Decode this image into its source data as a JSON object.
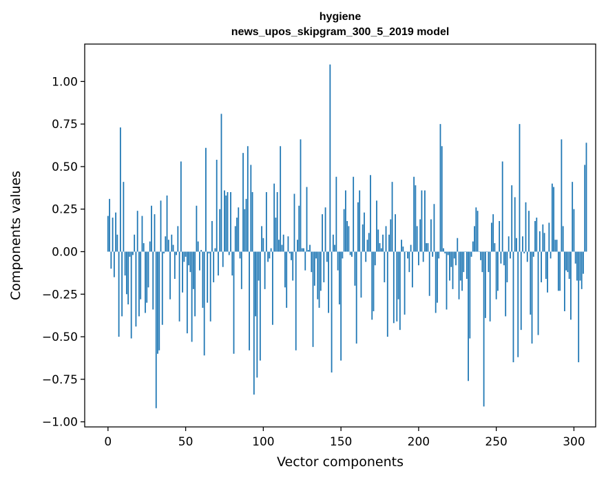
{
  "chart_data": {
    "type": "bar",
    "title_line1": "hygiene",
    "title_line2": "news_upos_skipgram_300_5_2019 model",
    "xlabel": "Vector components",
    "ylabel": "Components values",
    "xlim": [
      -15,
      314
    ],
    "ylim": [
      -1.03,
      1.22
    ],
    "xticks": [
      0,
      50,
      100,
      150,
      200,
      250,
      300
    ],
    "xtick_labels": [
      "0",
      "50",
      "100",
      "150",
      "200",
      "250",
      "300"
    ],
    "yticks": [
      -1.0,
      -0.75,
      -0.5,
      -0.25,
      0.0,
      0.25,
      0.5,
      0.75,
      1.0
    ],
    "ytick_labels": [
      "−1.00",
      "−0.75",
      "−0.50",
      "−0.25",
      "0.00",
      "0.25",
      "0.50",
      "0.75",
      "1.00"
    ],
    "bar_color": "#1f77b4",
    "values": [
      0.21,
      0.31,
      -0.1,
      0.2,
      -0.15,
      0.23,
      0.1,
      -0.5,
      0.73,
      -0.38,
      0.41,
      -0.14,
      -0.25,
      -0.31,
      -0.03,
      -0.51,
      -0.02,
      0.1,
      -0.44,
      0.24,
      -0.38,
      -0.28,
      0.21,
      0.05,
      -0.36,
      -0.3,
      -0.21,
      0.06,
      0.27,
      -0.34,
      0.22,
      -0.92,
      -0.6,
      -0.58,
      0.3,
      -0.43,
      -0.01,
      0.09,
      0.33,
      0.07,
      -0.28,
      0.1,
      0.04,
      -0.16,
      -0.02,
      0.15,
      -0.41,
      0.53,
      -0.24,
      -0.06,
      -0.03,
      -0.48,
      -0.08,
      -0.12,
      -0.53,
      -0.22,
      -0.38,
      0.27,
      0.06,
      -0.11,
      0.01,
      -0.33,
      -0.61,
      0.61,
      -0.3,
      -0.01,
      -0.41,
      0.18,
      -0.18,
      0.02,
      0.54,
      -0.14,
      0.25,
      0.81,
      -0.09,
      0.36,
      0.33,
      0.35,
      -0.02,
      0.35,
      -0.14,
      -0.6,
      0.15,
      0.2,
      0.26,
      -0.04,
      -0.22,
      0.58,
      0.25,
      0.31,
      0.62,
      -0.58,
      0.51,
      0.35,
      -0.84,
      -0.38,
      -0.74,
      -0.17,
      -0.64,
      0.15,
      0.08,
      -0.22,
      0.35,
      -0.06,
      -0.04,
      0.02,
      -0.43,
      0.4,
      0.2,
      0.35,
      0.07,
      0.62,
      0.04,
      0.1,
      -0.21,
      -0.33,
      0.09,
      -0.01,
      -0.05,
      -0.17,
      0.34,
      -0.58,
      0.07,
      0.27,
      0.66,
      0.02,
      0.02,
      -0.11,
      0.38,
      0.01,
      0.04,
      -0.12,
      -0.56,
      -0.2,
      -0.04,
      -0.28,
      -0.33,
      -0.23,
      0.22,
      -0.18,
      0.26,
      -0.06,
      -0.36,
      1.1,
      -0.71,
      0.1,
      0.04,
      0.44,
      -0.11,
      -0.31,
      -0.64,
      -0.04,
      0.25,
      0.36,
      0.18,
      0.15,
      -0.02,
      -0.03,
      0.44,
      -0.2,
      -0.54,
      0.29,
      0.36,
      -0.27,
      0.16,
      0.23,
      -0.06,
      0.07,
      0.11,
      0.45,
      -0.4,
      -0.35,
      -0.08,
      0.3,
      0.13,
      0.05,
      0.02,
      0.1,
      -0.18,
      0.15,
      -0.5,
      0.1,
      0.19,
      0.41,
      -0.42,
      0.22,
      -0.41,
      -0.28,
      -0.46,
      0.07,
      0.03,
      -0.37,
      0.0,
      -0.04,
      -0.12,
      0.04,
      -0.21,
      0.44,
      0.39,
      0.15,
      -0.08,
      0.19,
      0.36,
      -0.06,
      0.36,
      0.05,
      0.05,
      -0.26,
      0.19,
      -0.03,
      0.28,
      -0.36,
      -0.3,
      -0.04,
      0.75,
      0.62,
      0.02,
      -0.01,
      -0.34,
      -0.02,
      -0.17,
      -0.09,
      -0.22,
      -0.04,
      -0.08,
      0.08,
      -0.28,
      -0.17,
      -0.23,
      -0.12,
      0.0,
      -0.16,
      -0.76,
      -0.51,
      -0.03,
      0.06,
      0.15,
      0.26,
      0.24,
      0.0,
      -0.05,
      -0.12,
      -0.91,
      -0.39,
      0.0,
      -0.12,
      -0.41,
      0.17,
      0.22,
      0.05,
      -0.28,
      -0.23,
      0.18,
      -0.07,
      0.53,
      -0.08,
      -0.38,
      -0.18,
      0.09,
      -0.04,
      0.39,
      -0.65,
      0.32,
      0.08,
      -0.62,
      0.75,
      -0.46,
      0.09,
      -0.01,
      0.29,
      -0.06,
      0.24,
      -0.37,
      -0.54,
      -0.03,
      0.18,
      0.2,
      -0.49,
      0.12,
      -0.18,
      0.16,
      0.11,
      -0.16,
      -0.24,
      0.17,
      -0.04,
      0.4,
      0.38,
      0.07,
      0.07,
      -0.23,
      -0.23,
      0.66,
      0.15,
      -0.35,
      -0.11,
      -0.12,
      -0.16,
      -0.4,
      0.41,
      0.25,
      -0.07,
      -0.17,
      -0.65,
      -0.17,
      -0.22,
      -0.13,
      0.51,
      0.64
    ]
  }
}
